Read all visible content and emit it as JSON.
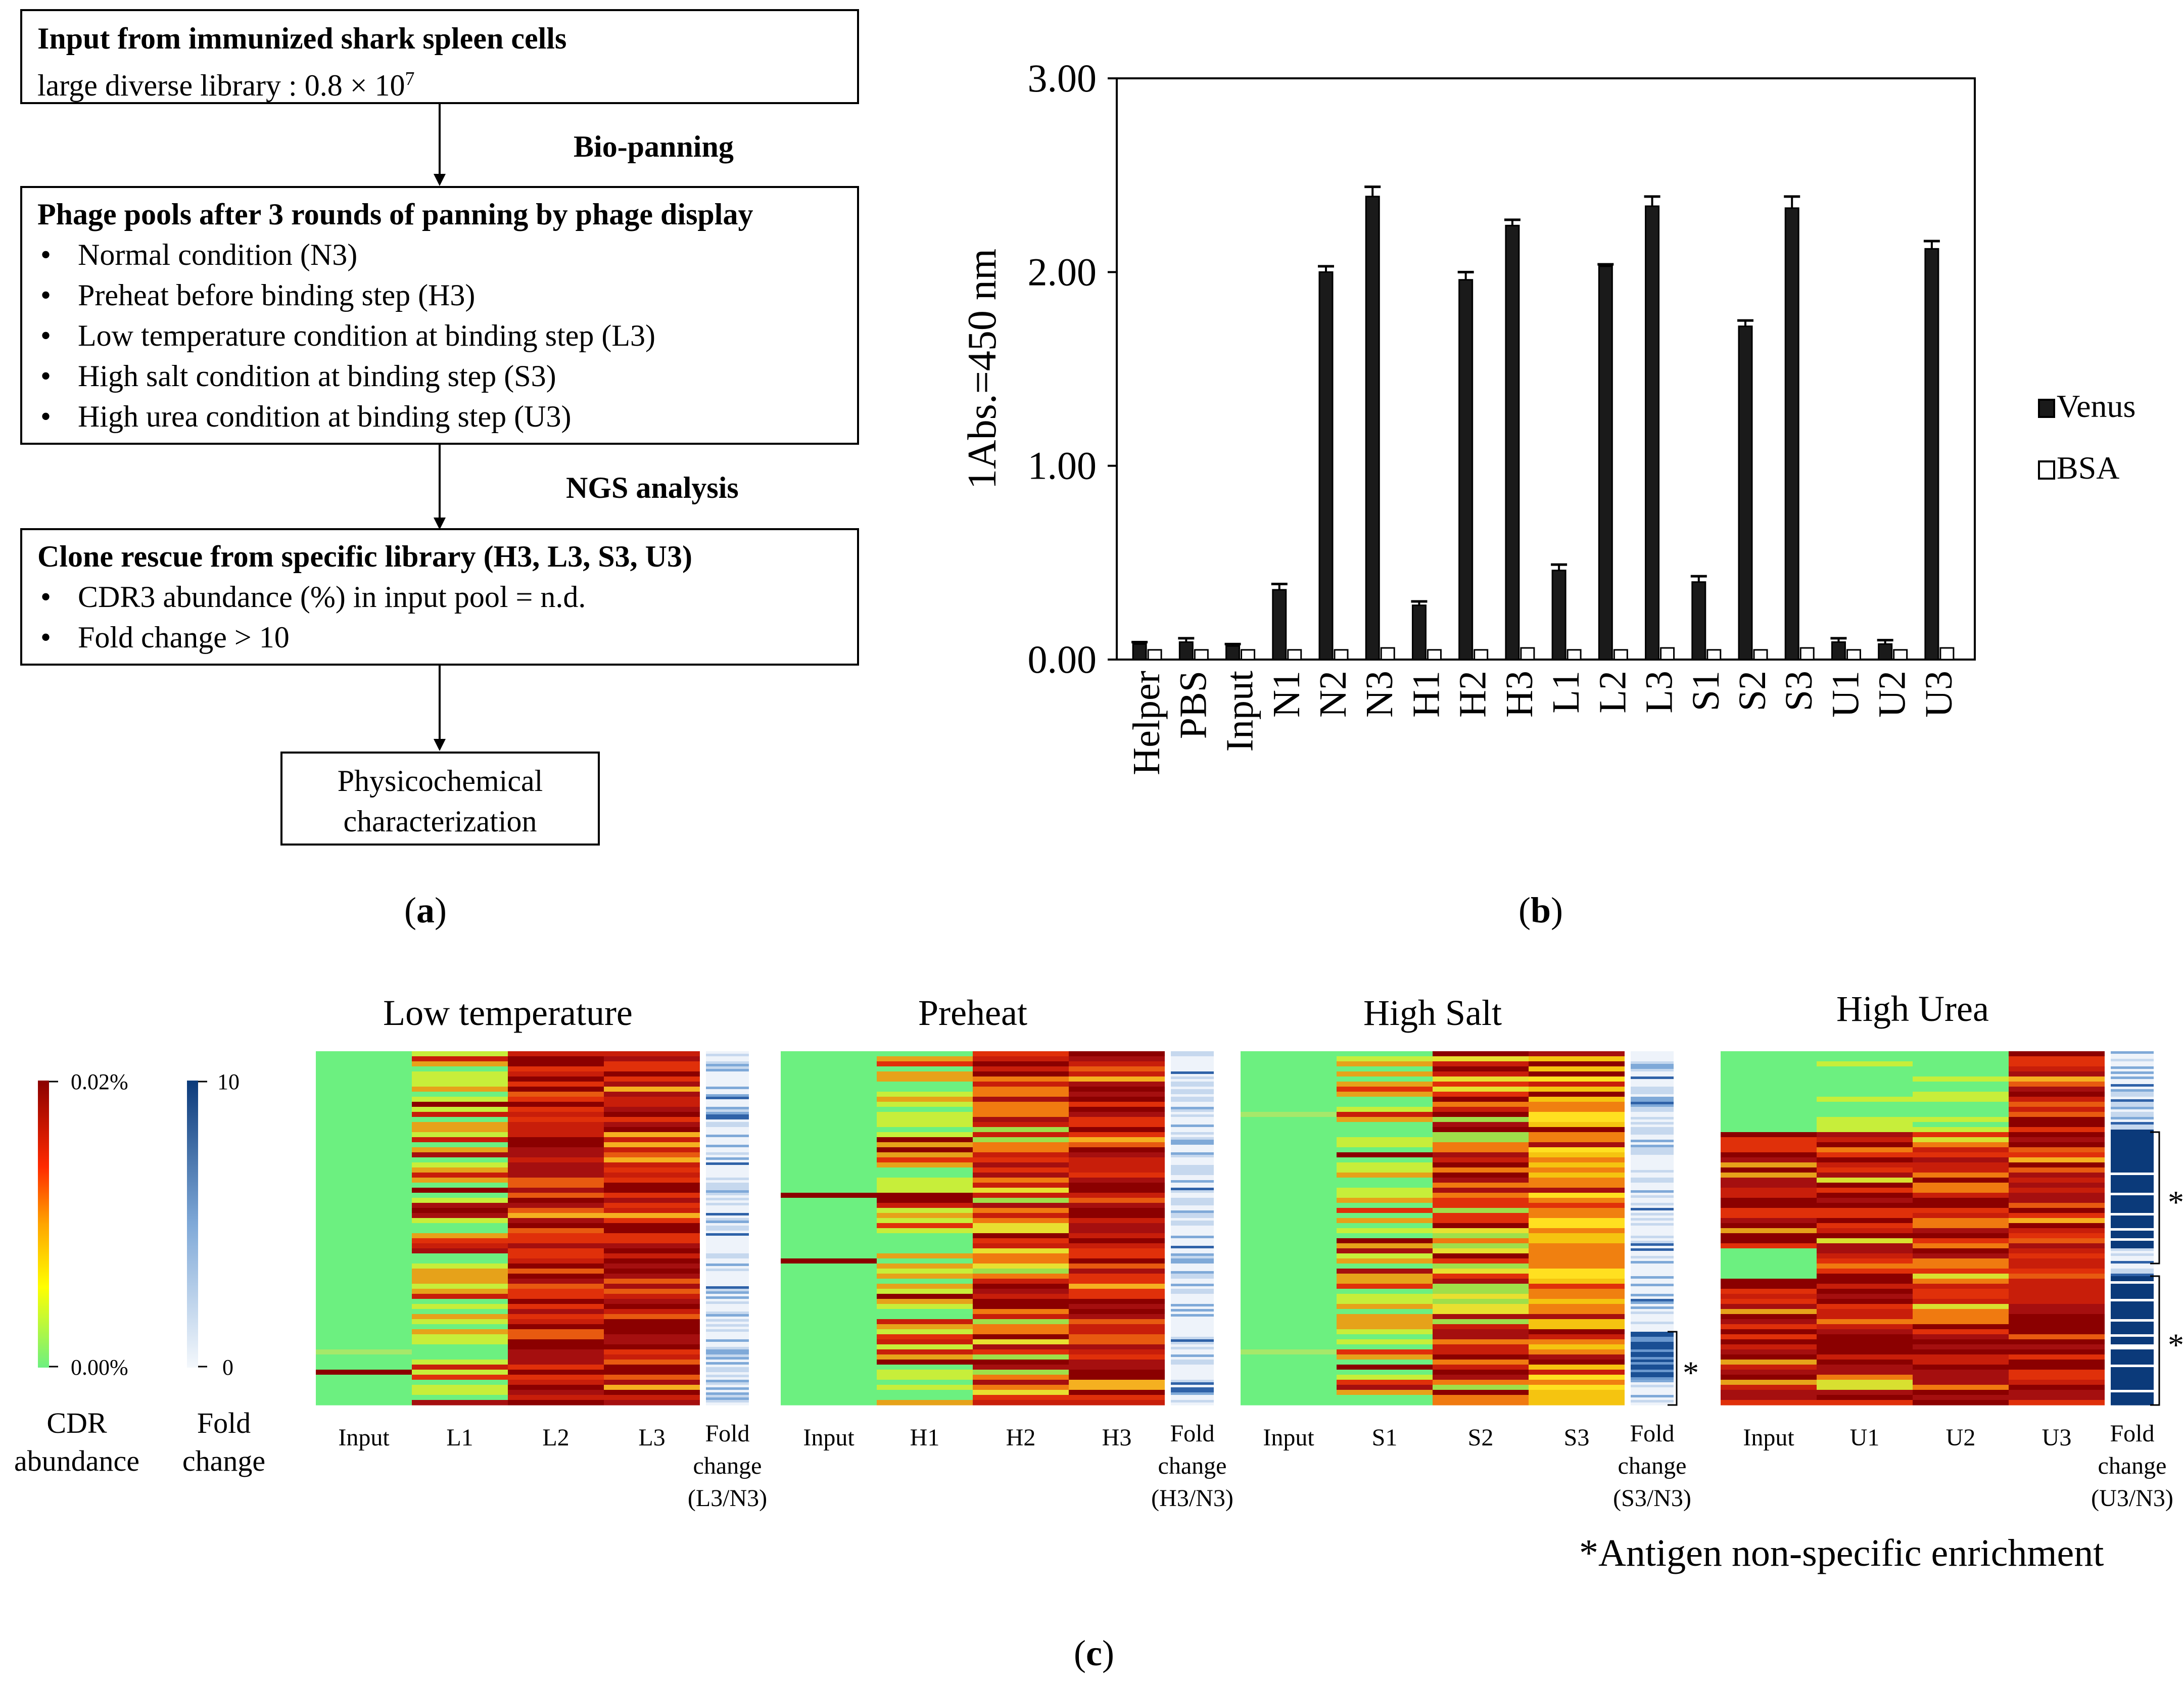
{
  "panel_a": {
    "box1": {
      "title": "Input from immunized shark spleen cells",
      "line2_prefix": "large diverse library : 0.8 ",
      "times": "×",
      "ten": " 10",
      "exp": "7"
    },
    "step1_label": "Bio-panning",
    "box2": {
      "title": "Phage pools after 3 rounds of panning by phage display",
      "items": [
        "Normal condition (N3)",
        "Preheat before binding step (H3)",
        "Low temperature condition at binding step (L3)",
        "High salt condition at binding step (S3)",
        "High urea condition at binding step (U3)"
      ]
    },
    "step2_label": "NGS analysis",
    "box3": {
      "title": "Clone rescue from specific library (H3, L3, S3, U3)",
      "items": [
        "CDR3 abundance (%) in input pool = n.d.",
        "Fold change > 10"
      ]
    },
    "box4": {
      "line1": "Physicochemical",
      "line2": "characterization"
    },
    "caption_letter": "a"
  },
  "chart_data": [
    {
      "type": "bar",
      "ylabel": "1Abs.=450 nm",
      "ylim": [
        0,
        3
      ],
      "yticks": [
        "0.00",
        "1.00",
        "2.00",
        "3.00"
      ],
      "categories": [
        "Helper",
        "PBS",
        "Input",
        "N1",
        "N2",
        "N3",
        "H1",
        "H2",
        "H3",
        "L1",
        "L2",
        "L3",
        "S1",
        "S2",
        "S3",
        "U1",
        "U2",
        "U3"
      ],
      "series": [
        {
          "name": "Venus",
          "color": "#1a1a1a",
          "values": [
            0.08,
            0.09,
            0.07,
            0.36,
            2.0,
            2.39,
            0.28,
            1.96,
            2.24,
            0.46,
            2.03,
            2.34,
            0.4,
            1.72,
            2.33,
            0.09,
            0.08,
            2.12
          ],
          "errors": [
            0.01,
            0.02,
            0.01,
            0.03,
            0.03,
            0.05,
            0.02,
            0.04,
            0.03,
            0.03,
            0.01,
            0.05,
            0.03,
            0.03,
            0.06,
            0.02,
            0.02,
            0.04
          ]
        },
        {
          "name": "BSA",
          "color": "#ffffff",
          "values": [
            0.05,
            0.05,
            0.05,
            0.05,
            0.05,
            0.06,
            0.05,
            0.05,
            0.06,
            0.05,
            0.05,
            0.06,
            0.05,
            0.05,
            0.06,
            0.05,
            0.05,
            0.06
          ],
          "errors": [
            0,
            0,
            0,
            0,
            0,
            0,
            0,
            0,
            0,
            0,
            0,
            0,
            0,
            0,
            0,
            0,
            0,
            0
          ]
        }
      ],
      "legend": "right",
      "caption_letter": "b"
    },
    {
      "type": "heatmap",
      "panels": [
        {
          "title": "Low temperature",
          "columns": [
            "Input",
            "L1",
            "L2",
            "L3"
          ],
          "fold_label": [
            "Fold",
            "change",
            "(L3/N3)"
          ]
        },
        {
          "title": "Preheat",
          "columns": [
            "Input",
            "H1",
            "H2",
            "H3"
          ],
          "fold_label": [
            "Fold",
            "change",
            "(H3/N3)"
          ]
        },
        {
          "title": "High Salt",
          "columns": [
            "Input",
            "S1",
            "S2",
            "S3"
          ],
          "fold_label": [
            "Fold",
            "change",
            "(S3/N3)"
          ]
        },
        {
          "title": "High Urea",
          "columns": [
            "Input",
            "U1",
            "U2",
            "U3"
          ],
          "fold_label": [
            "Fold",
            "change",
            "(U3/N3)"
          ]
        }
      ],
      "cdr_scale": {
        "max": "0.02%",
        "min": "0.00%",
        "label1": "CDR",
        "label2": "abundance"
      },
      "fold_scale": {
        "max": "10",
        "min": "0",
        "label1": "Fold",
        "label2": "change"
      },
      "star": "*",
      "footnote": "*Antigen non-specific enrichment",
      "caption_letter": "c"
    }
  ]
}
